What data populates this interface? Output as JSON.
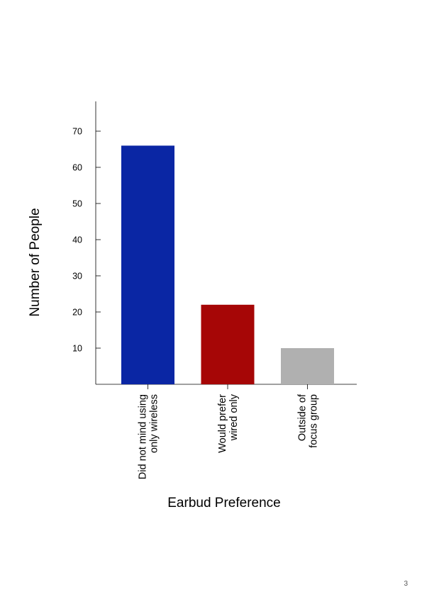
{
  "chart_data": {
    "type": "bar",
    "categories": [
      [
        "Did not mind using",
        "only wireless"
      ],
      [
        "Would prefer",
        "wired only"
      ],
      [
        "Outside of",
        "focus group"
      ]
    ],
    "values": [
      66,
      22,
      10
    ],
    "colors": [
      "#0a26a4",
      "#a60606",
      "#b0b0b0"
    ],
    "xlabel": "Earbud Preference",
    "ylabel": "Number of People",
    "yticks": [
      10,
      20,
      30,
      40,
      50,
      60,
      70
    ],
    "ylim": [
      0,
      78
    ],
    "grid": false
  },
  "page": {
    "number": "3"
  }
}
